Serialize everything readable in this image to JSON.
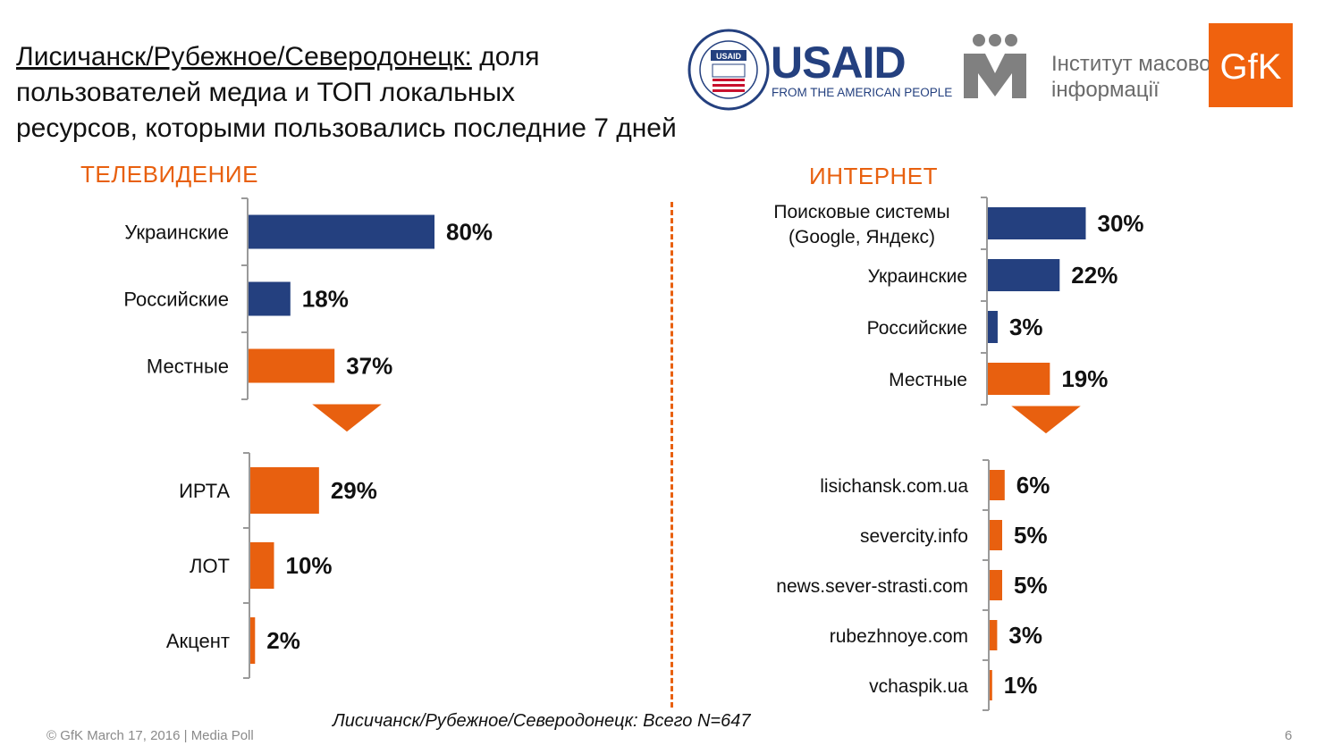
{
  "title": {
    "underlined": "Лисичанск/Рубежное/Северодонецк:",
    "rest_line1": " доля",
    "line2": "пользователей медиа и ТОП локальных",
    "line3": "ресурсов, которыми пользовались последние 7 дней"
  },
  "logos": {
    "usaid_name": "USAID",
    "usaid_tagline": "FROM THE AMERICAN PEOPLE",
    "usaid_seal_label": "USAID",
    "imi_line1": "Інститут масової",
    "imi_line2": "інформації",
    "gfk": "GfK"
  },
  "sections": {
    "tv": "ТЕЛЕВИДЕНИЕ",
    "internet": "ИНТЕРНЕТ"
  },
  "colors": {
    "blue": "#24407f",
    "orange": "#e8600f",
    "axis": "#9a9a9a"
  },
  "chart_data": [
    {
      "type": "bar",
      "orientation": "horizontal",
      "group": "ТЕЛЕВИДЕНИЕ",
      "categories": [
        "Украинские",
        "Российские",
        "Местные"
      ],
      "values": [
        80,
        18,
        37
      ],
      "labels": [
        "80%",
        "18%",
        "37%"
      ],
      "colors": [
        "blue",
        "blue",
        "orange"
      ]
    },
    {
      "type": "bar",
      "orientation": "horizontal",
      "group": "ТЕЛЕВИДЕНИЕ",
      "categories": [
        "ИРТА",
        "ЛОТ",
        "Акцент"
      ],
      "values": [
        29,
        10,
        2
      ],
      "labels": [
        "29%",
        "10%",
        "2%"
      ],
      "colors": [
        "orange",
        "orange",
        "orange"
      ]
    },
    {
      "type": "bar",
      "orientation": "horizontal",
      "group": "ИНТЕРНЕТ",
      "categories": [
        [
          "Поисковые системы",
          "(Google, Яндекс)"
        ],
        "Украинские",
        "Российские",
        "Местные"
      ],
      "values": [
        30,
        22,
        3,
        19
      ],
      "labels": [
        "30%",
        "22%",
        "3%",
        "19%"
      ],
      "colors": [
        "blue",
        "blue",
        "blue",
        "orange"
      ]
    },
    {
      "type": "bar",
      "orientation": "horizontal",
      "group": "ИНТЕРНЕТ",
      "categories": [
        "lisichansk.com.ua",
        "severcity.info",
        "news.sever-strasti.com",
        "rubezhnoye.com",
        "vchaspik.ua"
      ],
      "values": [
        6,
        5,
        5,
        3,
        1
      ],
      "labels": [
        "6%",
        "5%",
        "5%",
        "3%",
        "1%"
      ],
      "colors": [
        "orange",
        "orange",
        "orange",
        "orange",
        "orange"
      ]
    }
  ],
  "footer": {
    "base_note": "Лисичанск/Рубежное/Северодонецк: Всего N=647",
    "copyright": "© GfK March 17, 2016 | Media Poll",
    "page": "6"
  }
}
